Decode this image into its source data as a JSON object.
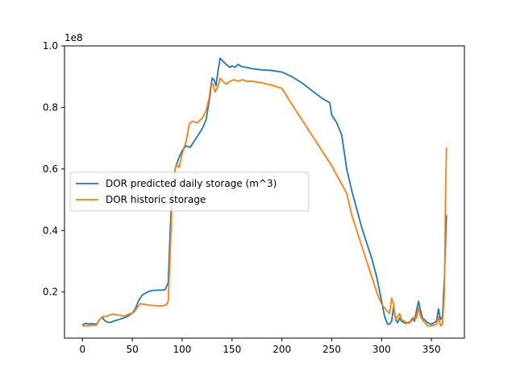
{
  "chart_data": {
    "type": "line",
    "title": "",
    "xlabel": "",
    "ylabel": "",
    "y_offset_label": "1e8",
    "xlim": [
      -18,
      383
    ],
    "ylim": [
      5000000.0,
      100000000.0
    ],
    "x_ticks": [
      0,
      50,
      100,
      150,
      200,
      250,
      300,
      350
    ],
    "y_ticks": [
      20000000.0,
      40000000.0,
      60000000.0,
      80000000.0,
      100000000.0
    ],
    "x_tick_labels": [
      "0",
      "50",
      "100",
      "150",
      "200",
      "250",
      "300",
      "350"
    ],
    "y_tick_labels": [
      "0.2",
      "0.4",
      "0.6",
      "0.8",
      "1.0"
    ],
    "grid": false,
    "legend_position": "center-left",
    "series": [
      {
        "name": "DOR predicted daily storage (m^3)",
        "color": "#1f77b4",
        "points": [
          [
            0,
            9300000.0
          ],
          [
            3,
            9800000.0
          ],
          [
            6,
            9600000.0
          ],
          [
            10,
            9700000.0
          ],
          [
            14,
            9500000.0
          ],
          [
            17,
            11000000.0
          ],
          [
            20,
            11800000.0
          ],
          [
            22,
            10800000.0
          ],
          [
            25,
            10200000.0
          ],
          [
            28,
            10100000.0
          ],
          [
            32,
            10600000.0
          ],
          [
            38,
            11200000.0
          ],
          [
            45,
            12000000.0
          ],
          [
            50,
            13200000.0
          ],
          [
            53,
            14500000.0
          ],
          [
            56,
            17000000.0
          ],
          [
            60,
            19000000.0
          ],
          [
            65,
            20000000.0
          ],
          [
            70,
            20500000.0
          ],
          [
            75,
            20600000.0
          ],
          [
            80,
            20600000.0
          ],
          [
            83,
            20800000.0
          ],
          [
            86,
            23000000.0
          ],
          [
            88,
            40000000.0
          ],
          [
            90,
            54000000.0
          ],
          [
            93,
            60000000.0
          ],
          [
            96,
            63000000.0
          ],
          [
            100,
            66000000.0
          ],
          [
            104,
            67500000.0
          ],
          [
            108,
            67000000.0
          ],
          [
            112,
            69000000.0
          ],
          [
            116,
            71000000.0
          ],
          [
            120,
            73000000.0
          ],
          [
            124,
            76000000.0
          ],
          [
            128,
            84000000.0
          ],
          [
            130,
            89500000.0
          ],
          [
            132,
            89000000.0
          ],
          [
            134,
            87000000.0
          ],
          [
            136,
            92000000.0
          ],
          [
            138,
            96000000.0
          ],
          [
            141,
            95000000.0
          ],
          [
            144,
            94000000.0
          ],
          [
            148,
            93000000.0
          ],
          [
            150,
            93500000.0
          ],
          [
            153,
            93000000.0
          ],
          [
            156,
            94000000.0
          ],
          [
            160,
            93200000.0
          ],
          [
            165,
            93000000.0
          ],
          [
            170,
            92600000.0
          ],
          [
            180,
            92200000.0
          ],
          [
            190,
            92000000.0
          ],
          [
            200,
            91500000.0
          ],
          [
            210,
            90000000.0
          ],
          [
            220,
            88000000.0
          ],
          [
            230,
            85500000.0
          ],
          [
            240,
            83000000.0
          ],
          [
            248,
            81500000.0
          ],
          [
            250,
            77500000.0
          ],
          [
            255,
            75000000.0
          ],
          [
            260,
            71000000.0
          ],
          [
            265,
            60000000.0
          ],
          [
            270,
            53000000.0
          ],
          [
            275,
            47000000.0
          ],
          [
            280,
            41000000.0
          ],
          [
            285,
            36000000.0
          ],
          [
            290,
            31000000.0
          ],
          [
            295,
            25000000.0
          ],
          [
            300,
            17000000.0
          ],
          [
            303,
            12000000.0
          ],
          [
            306,
            9500000.0
          ],
          [
            308,
            9600000.0
          ],
          [
            310,
            10500000.0
          ],
          [
            312,
            15000000.0
          ],
          [
            314,
            11000000.0
          ],
          [
            316,
            10000000.0
          ],
          [
            318,
            11500000.0
          ],
          [
            320,
            10500000.0
          ],
          [
            324,
            9800000.0
          ],
          [
            328,
            10000000.0
          ],
          [
            331,
            11500000.0
          ],
          [
            333,
            10500000.0
          ],
          [
            335,
            14000000.0
          ],
          [
            337,
            17000000.0
          ],
          [
            339,
            14000000.0
          ],
          [
            341,
            11500000.0
          ],
          [
            343,
            11000000.0
          ],
          [
            346,
            10000000.0
          ],
          [
            350,
            9500000.0
          ],
          [
            355,
            10500000.0
          ],
          [
            357,
            14500000.0
          ],
          [
            359,
            11000000.0
          ],
          [
            361,
            12000000.0
          ],
          [
            363,
            25000000.0
          ],
          [
            365,
            45000000.0
          ]
        ]
      },
      {
        "name": "DOR historic storage",
        "color": "#ff7f0e",
        "points": [
          [
            0,
            9000000.0
          ],
          [
            5,
            9000000.0
          ],
          [
            10,
            9200000.0
          ],
          [
            14,
            9200000.0
          ],
          [
            17,
            11000000.0
          ],
          [
            20,
            12000000.0
          ],
          [
            23,
            12000000.0
          ],
          [
            26,
            12400000.0
          ],
          [
            30,
            12800000.0
          ],
          [
            36,
            12500000.0
          ],
          [
            42,
            12200000.0
          ],
          [
            48,
            13000000.0
          ],
          [
            52,
            13500000.0
          ],
          [
            55,
            15000000.0
          ],
          [
            58,
            16200000.0
          ],
          [
            62,
            16000000.0
          ],
          [
            68,
            15700000.0
          ],
          [
            75,
            15500000.0
          ],
          [
            80,
            15500000.0
          ],
          [
            84,
            15800000.0
          ],
          [
            86,
            17000000.0
          ],
          [
            88,
            33000000.0
          ],
          [
            90,
            50000000.0
          ],
          [
            92,
            58000000.0
          ],
          [
            94,
            61500000.0
          ],
          [
            97,
            60500000.0
          ],
          [
            100,
            65000000.0
          ],
          [
            104,
            69000000.0
          ],
          [
            107,
            74500000.0
          ],
          [
            110,
            75500000.0
          ],
          [
            115,
            75000000.0
          ],
          [
            120,
            76500000.0
          ],
          [
            124,
            79000000.0
          ],
          [
            127,
            83000000.0
          ],
          [
            129,
            88000000.0
          ],
          [
            131,
            87500000.0
          ],
          [
            133,
            85000000.0
          ],
          [
            136,
            87000000.0
          ],
          [
            138,
            89500000.0
          ],
          [
            141,
            88500000.0
          ],
          [
            144,
            87500000.0
          ],
          [
            148,
            88500000.0
          ],
          [
            152,
            89000000.0
          ],
          [
            156,
            88500000.0
          ],
          [
            160,
            89000000.0
          ],
          [
            165,
            88500000.0
          ],
          [
            170,
            88500000.0
          ],
          [
            180,
            88000000.0
          ],
          [
            190,
            87200000.0
          ],
          [
            200,
            86200000.0
          ],
          [
            210,
            81000000.0
          ],
          [
            220,
            76000000.0
          ],
          [
            230,
            71000000.0
          ],
          [
            240,
            66000000.0
          ],
          [
            248,
            62000000.0
          ],
          [
            250,
            61000000.0
          ],
          [
            255,
            58000000.0
          ],
          [
            260,
            55000000.0
          ],
          [
            265,
            52000000.0
          ],
          [
            270,
            45000000.0
          ],
          [
            275,
            40000000.0
          ],
          [
            280,
            35000000.0
          ],
          [
            285,
            30000000.0
          ],
          [
            290,
            25000000.0
          ],
          [
            295,
            20000000.0
          ],
          [
            300,
            16000000.0
          ],
          [
            305,
            14000000.0
          ],
          [
            308,
            13000000.0
          ],
          [
            310,
            18000000.0
          ],
          [
            312,
            16000000.0
          ],
          [
            314,
            11000000.0
          ],
          [
            316,
            12000000.0
          ],
          [
            318,
            13000000.0
          ],
          [
            320,
            11000000.0
          ],
          [
            325,
            10000000.0
          ],
          [
            330,
            10500000.0
          ],
          [
            333,
            12000000.0
          ],
          [
            335,
            11500000.0
          ],
          [
            337,
            15000000.0
          ],
          [
            339,
            12000000.0
          ],
          [
            342,
            10500000.0
          ],
          [
            346,
            9000000.0
          ],
          [
            350,
            9000000.0
          ],
          [
            355,
            9500000.0
          ],
          [
            357,
            12000000.0
          ],
          [
            359,
            9000000.0
          ],
          [
            361,
            9500000.0
          ],
          [
            363,
            20000000.0
          ],
          [
            364,
            50000000.0
          ],
          [
            365,
            67000000.0
          ]
        ]
      }
    ]
  }
}
